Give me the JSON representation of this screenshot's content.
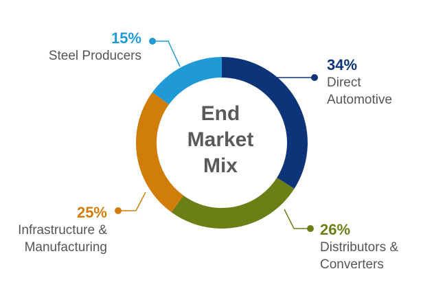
{
  "chart_data": {
    "type": "pie",
    "title": "End Market Mix",
    "title_lines": [
      "End",
      "Market",
      "Mix"
    ],
    "slices": [
      {
        "label": "Direct Automotive",
        "label_lines": [
          "Direct",
          "Automotive"
        ],
        "value": 34,
        "value_label": "34%",
        "color": "#0d3478"
      },
      {
        "label": "Distributors & Converters",
        "label_lines": [
          "Distributors &",
          "Converters"
        ],
        "value": 26,
        "value_label": "26%",
        "color": "#6a7f16"
      },
      {
        "label": "Infrastructure & Manufacturing",
        "label_lines": [
          "Infrastructure &",
          "Manufacturing"
        ],
        "value": 25,
        "value_label": "25%",
        "color": "#d07d0a"
      },
      {
        "label": "Steel Producers",
        "label_lines": [
          "Steel Producers"
        ],
        "value": 15,
        "value_label": "15%",
        "color": "#1f9ad6"
      }
    ]
  }
}
